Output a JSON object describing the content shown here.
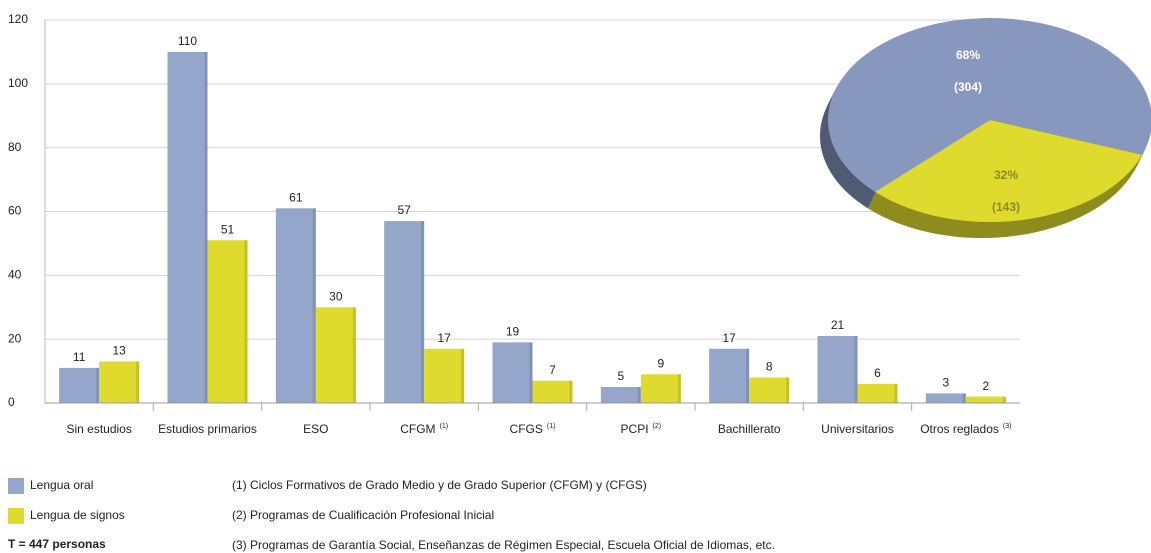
{
  "chart_data": [
    {
      "type": "bar",
      "categories": [
        "Sin estudios",
        "Estudios primarios",
        "ESO",
        "CFGM",
        "CFGS",
        "PCPI",
        "Bachillerato",
        "Universitarios",
        "Otros reglados"
      ],
      "category_notes": [
        null,
        null,
        null,
        "(1)",
        "(1)",
        "(2)",
        null,
        null,
        "(3)"
      ],
      "series": [
        {
          "name": "Lengua oral",
          "color": "#94a6ca",
          "values": [
            11,
            110,
            61,
            57,
            19,
            5,
            17,
            21,
            3
          ]
        },
        {
          "name": "Lengua de signos",
          "color": "#dedb2e",
          "values": [
            13,
            51,
            30,
            17,
            7,
            9,
            8,
            6,
            2
          ]
        }
      ],
      "ylim": [
        0,
        120
      ],
      "yticks": [
        0,
        20,
        40,
        60,
        80,
        100,
        120
      ],
      "grid": true,
      "total_label": "T = 447 personas",
      "notes": [
        "(1) Ciclos Formativos de Grado Medio y de Grado Superior (CFGM) y (CFGS)",
        "(2) Programas de Cualificación Profesional Inicial",
        "(3) Programas de Garantía Social, Enseñanzas de Régimen Especial, Escuela Oficial de Idiomas, etc."
      ]
    },
    {
      "type": "pie",
      "values": [
        68,
        32
      ],
      "value_labels": [
        "68%",
        "32%"
      ],
      "counts": [
        304,
        143
      ],
      "count_labels": [
        "(304)",
        "(143)"
      ],
      "colors": [
        "#8797bd",
        "#dedb2e"
      ]
    }
  ]
}
